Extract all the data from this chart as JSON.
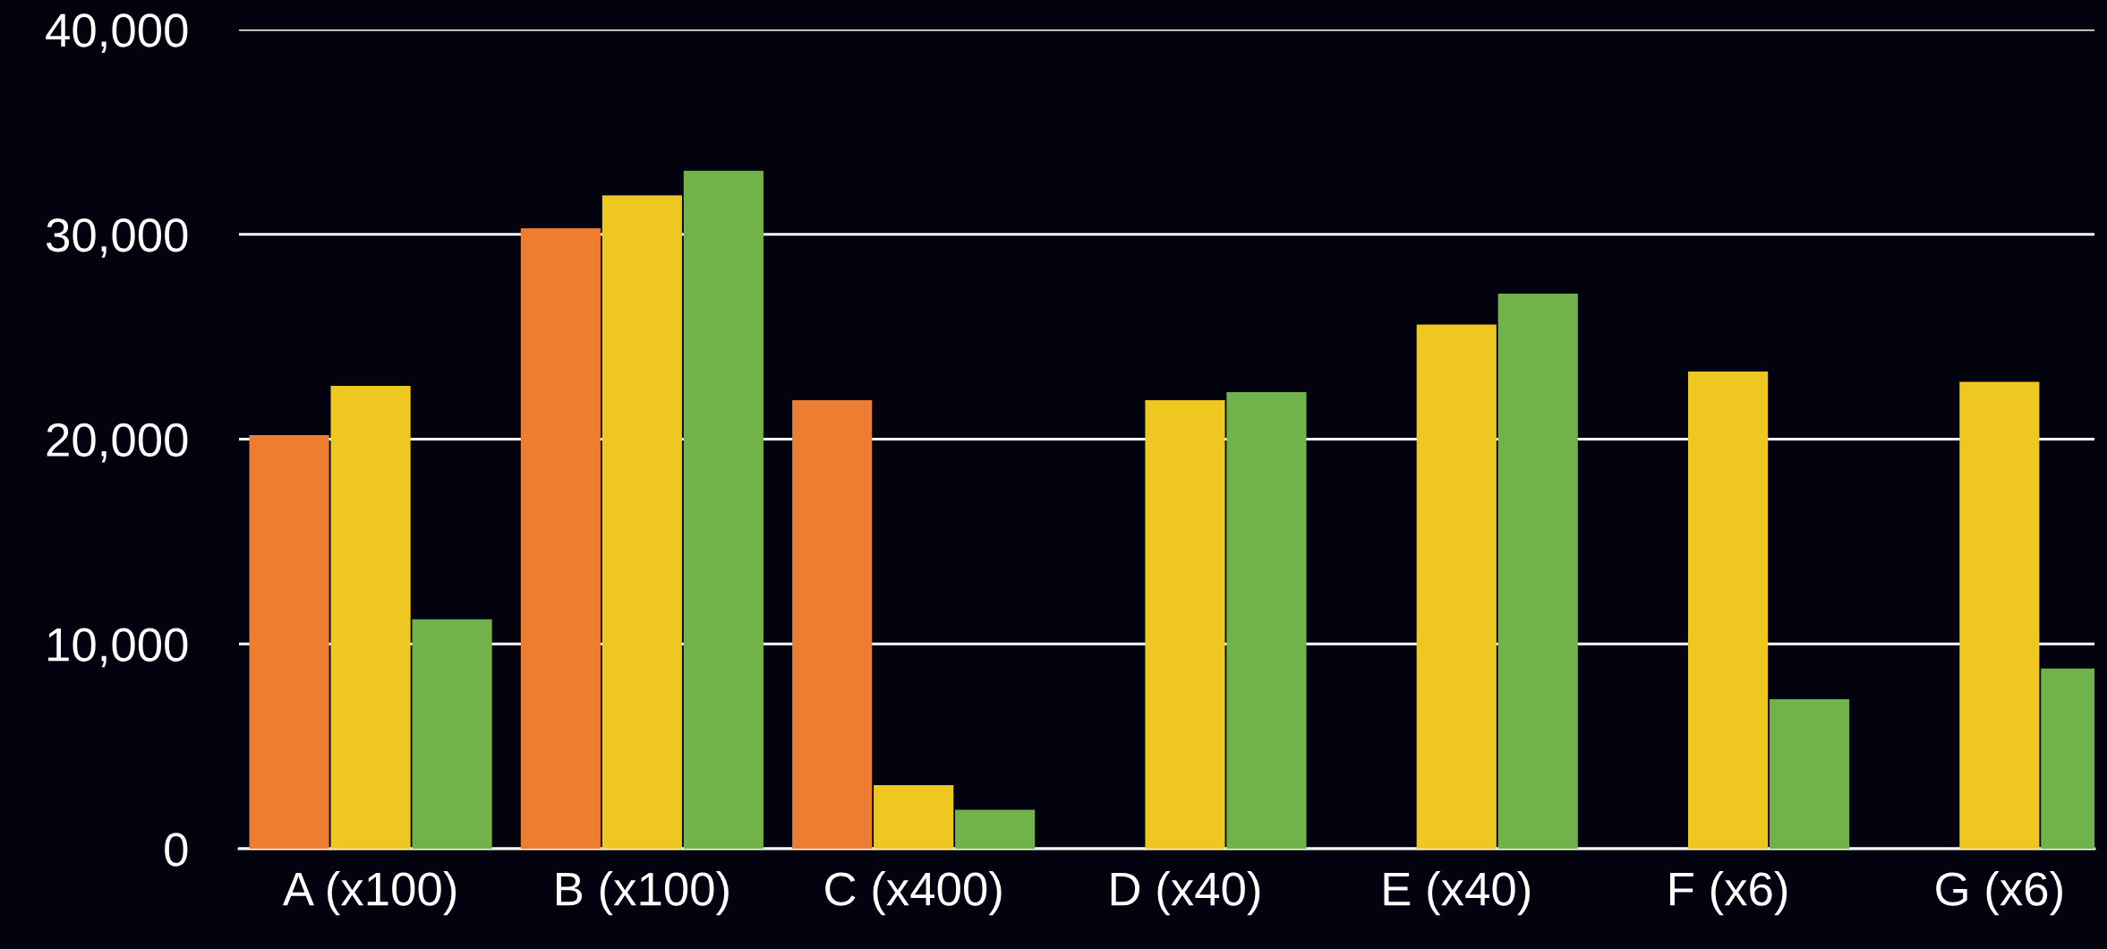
{
  "chart_data": {
    "type": "bar",
    "categories": [
      "A (x100)",
      "B (x100)",
      "C (x400)",
      "D (x40)",
      "E (x40)",
      "F (x6)",
      "G (x6)"
    ],
    "series": [
      {
        "color": "#ed7d31",
        "values": [
          20200,
          30300,
          21900,
          null,
          null,
          null,
          null
        ]
      },
      {
        "color": "#eec820",
        "values": [
          22600,
          31900,
          3100,
          21900,
          25600,
          23300,
          22800
        ]
      },
      {
        "color": "#71b24b",
        "values": [
          11200,
          33100,
          1900,
          22300,
          27100,
          7300,
          8800
        ]
      }
    ],
    "ylim": [
      0,
      40000
    ],
    "yticks": [
      {
        "value": 0,
        "label": "0"
      },
      {
        "value": 10000,
        "label": "10,000"
      },
      {
        "value": 20000,
        "label": "20,000"
      },
      {
        "value": 30000,
        "label": "30,000"
      },
      {
        "value": 40000,
        "label": "40,000"
      }
    ],
    "grid": "y",
    "legend": false
  }
}
